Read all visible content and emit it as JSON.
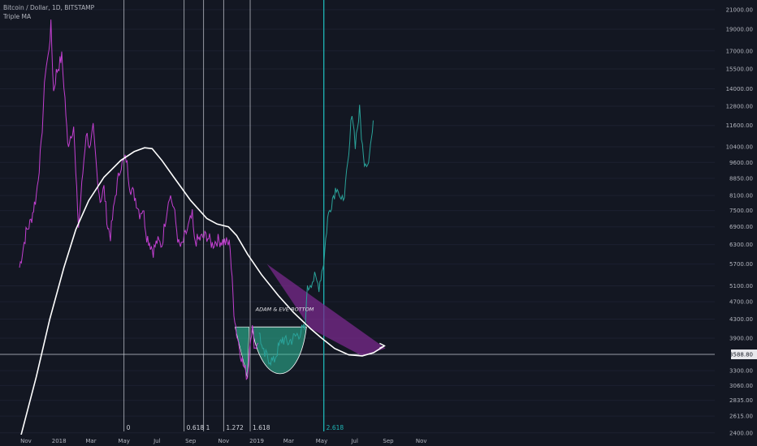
{
  "header": {
    "symbol_line": "Bitcoin / Dollar, 1D, BITSTAMP",
    "indicator_line": "Triple MA"
  },
  "colors": {
    "background": "#131722",
    "price": "#c23fd0",
    "price_recent": "#2aa39a",
    "ma": "#ffffff",
    "fib_line": "#d1d4dc",
    "fib_highlight": "#1fb5b5",
    "wedge_fill": "#7a2a8c",
    "bottom_fill": "#2fbf9a"
  },
  "chart_data": {
    "type": "line",
    "title": "Bitcoin / Dollar, 1D, BITSTAMP",
    "series": [
      {
        "name": "",
        "points": [
          [
            "2017-10-20",
            5600
          ],
          [
            "2017-11-01",
            6700
          ],
          [
            "2017-11-10",
            7100
          ],
          [
            "2017-11-20",
            8100
          ],
          [
            "2017-11-29",
            10400
          ],
          [
            "2017-12-07",
            15500
          ],
          [
            "2017-12-12",
            16500
          ],
          [
            "2017-12-17",
            19300
          ],
          [
            "2017-12-22",
            13800
          ],
          [
            "2017-12-27",
            15200
          ],
          [
            "2018-01-06",
            16500
          ],
          [
            "2018-01-12",
            13300
          ],
          [
            "2018-01-17",
            10500
          ],
          [
            "2018-01-22",
            11000
          ],
          [
            "2018-01-28",
            11600
          ],
          [
            "2018-02-01",
            9000
          ],
          [
            "2018-02-06",
            6900
          ],
          [
            "2018-02-12",
            8500
          ],
          [
            "2018-02-20",
            11200
          ],
          [
            "2018-02-28",
            10300
          ],
          [
            "2018-03-05",
            11400
          ],
          [
            "2018-03-12",
            9100
          ],
          [
            "2018-03-18",
            7900
          ],
          [
            "2018-03-25",
            8400
          ],
          [
            "2018-04-01",
            6900
          ],
          [
            "2018-04-06",
            6600
          ],
          [
            "2018-04-15",
            8100
          ],
          [
            "2018-04-24",
            9400
          ],
          [
            "2018-05-05",
            9800
          ],
          [
            "2018-05-12",
            8500
          ],
          [
            "2018-05-22",
            8000
          ],
          [
            "2018-05-30",
            7400
          ],
          [
            "2018-06-05",
            7600
          ],
          [
            "2018-06-12",
            6600
          ],
          [
            "2018-06-24",
            6100
          ],
          [
            "2018-07-01",
            6400
          ],
          [
            "2018-07-10",
            6300
          ],
          [
            "2018-07-18",
            7400
          ],
          [
            "2018-07-24",
            8200
          ],
          [
            "2018-08-01",
            7600
          ],
          [
            "2018-08-10",
            6300
          ],
          [
            "2018-08-15",
            6200
          ],
          [
            "2018-08-24",
            6700
          ],
          [
            "2018-09-04",
            7300
          ],
          [
            "2018-09-08",
            6400
          ],
          [
            "2018-09-20",
            6500
          ],
          [
            "2018-10-01",
            6600
          ],
          [
            "2018-10-11",
            6300
          ],
          [
            "2018-10-20",
            6450
          ],
          [
            "2018-11-01",
            6400
          ],
          [
            "2018-11-13",
            6300
          ],
          [
            "2018-11-15",
            5600
          ],
          [
            "2018-11-20",
            4500
          ],
          [
            "2018-11-25",
            4000
          ],
          [
            "2018-12-07",
            3400
          ],
          [
            "2018-12-15",
            3200
          ],
          [
            "2018-12-21",
            4000
          ],
          [
            "2018-12-24",
            4100
          ],
          [
            "2018-12-29",
            3700
          ],
          [
            "2019-01-07",
            4000
          ],
          [
            "2019-01-12",
            3600
          ],
          [
            "2019-01-20",
            3550
          ],
          [
            "2019-02-01",
            3450
          ],
          [
            "2019-02-08",
            3650
          ],
          [
            "2019-02-18",
            3900
          ],
          [
            "2019-02-26",
            3800
          ],
          [
            "2019-03-10",
            3900
          ],
          [
            "2019-03-20",
            4000
          ],
          [
            "2019-04-01",
            4100
          ],
          [
            "2019-04-03",
            4900
          ],
          [
            "2019-04-10",
            5200
          ],
          [
            "2019-04-18",
            5300
          ],
          [
            "2019-04-26",
            5100
          ],
          [
            "2019-05-05",
            5800
          ],
          [
            "2019-05-12",
            7200
          ],
          [
            "2019-05-21",
            8000
          ],
          [
            "2019-05-30",
            8600
          ],
          [
            "2019-06-06",
            7700
          ],
          [
            "2019-06-14",
            8500
          ],
          [
            "2019-06-20",
            9800
          ],
          [
            "2019-06-26",
            12600
          ],
          [
            "2019-07-02",
            10600
          ],
          [
            "2019-07-10",
            12500
          ],
          [
            "2019-07-17",
            9800
          ],
          [
            "2019-07-25",
            9600
          ],
          [
            "2019-08-06",
            11900
          ]
        ]
      },
      {
        "name": "",
        "points": [
          [
            "2017-10-20",
            2300
          ],
          [
            "2017-11-20",
            3200
          ],
          [
            "2017-12-15",
            4300
          ],
          [
            "2018-01-10",
            5600
          ],
          [
            "2018-02-01",
            6800
          ],
          [
            "2018-02-25",
            7900
          ],
          [
            "2018-03-25",
            8900
          ],
          [
            "2018-04-25",
            9700
          ],
          [
            "2018-05-20",
            10150
          ],
          [
            "2018-06-08",
            10350
          ],
          [
            "2018-06-22",
            10300
          ],
          [
            "2018-07-10",
            9700
          ],
          [
            "2018-08-01",
            8900
          ],
          [
            "2018-09-01",
            7900
          ],
          [
            "2018-10-01",
            7200
          ],
          [
            "2018-10-20",
            7000
          ],
          [
            "2018-11-10",
            6900
          ],
          [
            "2018-11-25",
            6600
          ],
          [
            "2018-12-15",
            6000
          ],
          [
            "2019-01-10",
            5400
          ],
          [
            "2019-02-10",
            4850
          ],
          [
            "2019-03-10",
            4450
          ],
          [
            "2019-04-10",
            4100
          ],
          [
            "2019-05-01",
            3900
          ],
          [
            "2019-05-25",
            3700
          ],
          [
            "2019-06-20",
            3580
          ],
          [
            "2019-07-15",
            3560
          ],
          [
            "2019-08-05",
            3620
          ],
          [
            "2019-08-25",
            3750
          ]
        ]
      }
    ],
    "y_axis": {
      "scale": "log",
      "ticks": [
        "21000.00",
        "19000.00",
        "17000.00",
        "15500.00",
        "14000.00",
        "12800.00",
        "11600.00",
        "10400.00",
        "9600.00",
        "8850.00",
        "8100.00",
        "7500.00",
        "6900.00",
        "6300.00",
        "5700.00",
        "5100.00",
        "4700.00",
        "4300.00",
        "3900.00",
        "3588.80",
        "3300.00",
        "3060.00",
        "2835.00",
        "2615.00",
        "2400.00"
      ],
      "current_price": "3588.80"
    },
    "x_axis": {
      "ticks": [
        "Nov",
        "2018",
        "Mar",
        "May",
        "Jul",
        "Sep",
        "Nov",
        "2019",
        "Mar",
        "May",
        "Jul",
        "Sep",
        "Nov"
      ]
    },
    "fib_time_levels": [
      {
        "label": "0",
        "date": "2018-05-01"
      },
      {
        "label": "0.618",
        "date": "2018-08-20"
      },
      {
        "label": "1",
        "date": "2018-09-25"
      },
      {
        "label": "1.272",
        "date": "2018-11-01"
      },
      {
        "label": "1.618",
        "date": "2018-12-20"
      },
      {
        "label": "2.618",
        "date": "2019-05-05"
      }
    ],
    "annotations": [
      {
        "text": "ADAM & EVE BOTTOM"
      }
    ]
  }
}
